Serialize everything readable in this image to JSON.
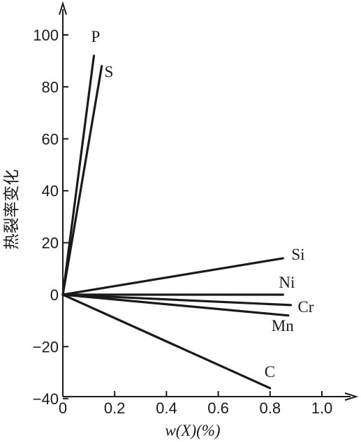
{
  "chart_data": {
    "type": "line",
    "title": "",
    "xlabel": "w(X)(%)",
    "ylabel": "热裂率变化",
    "xlim": [
      0,
      1.1
    ],
    "ylim": [
      -40,
      108
    ],
    "x_ticks": [
      0,
      0.2,
      0.4,
      0.6,
      0.8,
      1.0
    ],
    "x_tick_labels": [
      "0",
      "0.2",
      "0.4",
      "0.6",
      "0.8",
      "1.0"
    ],
    "y_ticks": [
      100,
      80,
      60,
      40,
      20,
      0,
      -20,
      -40
    ],
    "y_tick_labels": [
      "100",
      "80",
      "60",
      "40",
      "20",
      "0",
      "−20",
      "−40"
    ],
    "grid": false,
    "legend": "none",
    "line_color": "#1a1a1a",
    "series": [
      {
        "name": "P",
        "x": [
          0,
          0.12
        ],
        "y": [
          0,
          92
        ]
      },
      {
        "name": "S",
        "x": [
          0,
          0.15
        ],
        "y": [
          0,
          88
        ]
      },
      {
        "name": "Si",
        "x": [
          0,
          0.85
        ],
        "y": [
          0,
          14
        ]
      },
      {
        "name": "Ni",
        "x": [
          0,
          0.85
        ],
        "y": [
          0,
          0
        ]
      },
      {
        "name": "Cr",
        "x": [
          0,
          0.88
        ],
        "y": [
          0,
          -4
        ]
      },
      {
        "name": "Mn",
        "x": [
          0,
          0.87
        ],
        "y": [
          0,
          -8
        ]
      },
      {
        "name": "C",
        "x": [
          0,
          0.8
        ],
        "y": [
          0,
          -36
        ]
      }
    ]
  }
}
